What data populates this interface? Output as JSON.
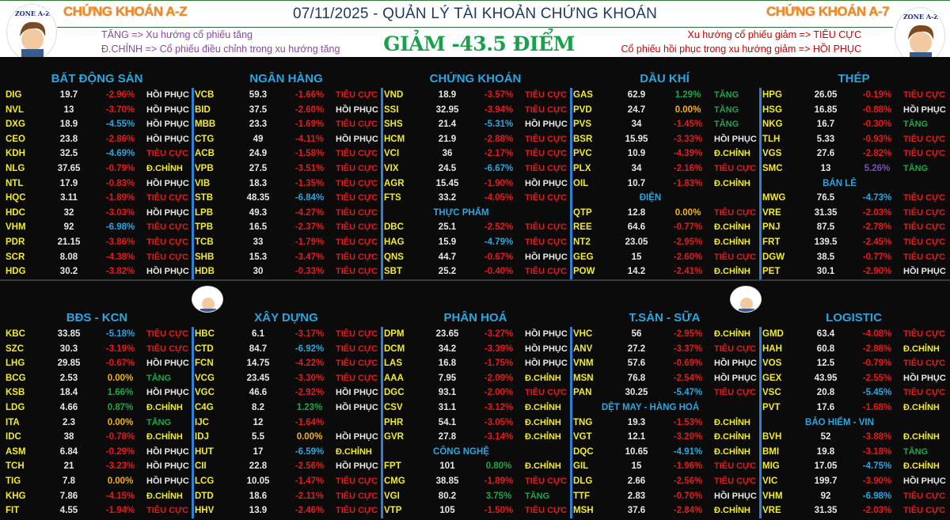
{
  "header": {
    "brand_left": "CHỨNG KHOÁN A-Z",
    "brand_right": "CHỨNG KHOÁN A-7",
    "title": "07/11/2025 - QUẢN LÝ TÀI KHOẢN CHỨNG KHOÁN",
    "headline": "GIẢM -43.5 ĐIỂM",
    "legend_left": [
      "TĂNG => Xu hướng cổ phiếu tăng",
      "Đ.CHỈNH => Cổ phiếu điều chỉnh trong xu hướng tăng"
    ],
    "legend_right": [
      "Xu hướng cổ phiếu giảm => TIÊU CỰC",
      "Cổ phiếu hồi phục trong xu hướng giảm => HỒI PHỤC"
    ],
    "logo_text": "ZONE A-Z"
  },
  "colors": {
    "down": "#e31b1b",
    "floor": "#2aa6e0",
    "up": "#1fa64a",
    "reference": "#f2b21b",
    "ceiling": "#7a4fb8",
    "headline": "#18a04a",
    "sector": "#2aa6e0",
    "ticker": "#f2ec2a"
  },
  "pct_color_codes": {
    "r": "down",
    "b": "floor",
    "g": "up",
    "y": "reference",
    "p": "ceiling"
  },
  "blocks": [
    [
      {
        "title": "BẤT ĐỘNG SẢN",
        "rows": [
          [
            "DIG",
            "19.7",
            "-2.96%",
            "r",
            "HỒI PHỤC"
          ],
          [
            "NVL",
            "13",
            "-3.70%",
            "r",
            "HỒI PHỤC"
          ],
          [
            "DXG",
            "18.9",
            "-4.55%",
            "b",
            "HỒI PHỤC"
          ],
          [
            "CEO",
            "23.8",
            "-2.86%",
            "r",
            "HỒI PHỤC"
          ],
          [
            "KDH",
            "32.5",
            "-4.69%",
            "b",
            "TIÊU CỰC"
          ],
          [
            "NLG",
            "37.65",
            "-0.79%",
            "r",
            "Đ.CHỈNH"
          ],
          [
            "NTL",
            "17.9",
            "-0.83%",
            "r",
            "HỒI PHỤC"
          ],
          [
            "HQC",
            "3.11",
            "-1.89%",
            "r",
            "TIÊU CỰC"
          ],
          [
            "HDC",
            "32",
            "-3.03%",
            "r",
            "HỒI PHỤC"
          ],
          [
            "VHM",
            "92",
            "-6.98%",
            "b",
            "TIÊU CỰC"
          ],
          [
            "PDR",
            "21.15",
            "-3.86%",
            "r",
            "TIÊU CỰC"
          ],
          [
            "SCR",
            "8.08",
            "-4.38%",
            "r",
            "TIÊU CỰC"
          ],
          [
            "HDG",
            "30.2",
            "-3.82%",
            "r",
            "HỒI PHỤC"
          ]
        ]
      },
      {
        "title": "NGÂN HÀNG",
        "rows": [
          [
            "VCB",
            "59.3",
            "-1.66%",
            "r",
            "TIÊU CỰC"
          ],
          [
            "BID",
            "37.5",
            "-2.60%",
            "r",
            "HỒI PHỤC"
          ],
          [
            "MBB",
            "23.3",
            "-1.69%",
            "r",
            "TIÊU CỰC"
          ],
          [
            "CTG",
            "49",
            "-4.11%",
            "r",
            "HỒI PHỤC"
          ],
          [
            "ACB",
            "24.9",
            "-1.58%",
            "r",
            "TIÊU CỰC"
          ],
          [
            "VPB",
            "27.5",
            "-3.51%",
            "r",
            "TIÊU CỰC"
          ],
          [
            "VIB",
            "18.3",
            "-1.35%",
            "r",
            "TIÊU CỰC"
          ],
          [
            "STB",
            "48.35",
            "-6.84%",
            "b",
            "TIÊU CỰC"
          ],
          [
            "LPB",
            "49.3",
            "-4.27%",
            "r",
            "TIÊU CỰC"
          ],
          [
            "TPB",
            "16.5",
            "-2.37%",
            "r",
            "TIÊU CỰC"
          ],
          [
            "TCB",
            "33",
            "-1.79%",
            "r",
            "TIÊU CỰC"
          ],
          [
            "SHB",
            "15.3",
            "-3.47%",
            "r",
            "TIÊU CỰC"
          ],
          [
            "HDB",
            "30",
            "-0.33%",
            "r",
            "TIÊU CỰC"
          ]
        ]
      },
      {
        "title": "CHỨNG KHOÁN",
        "rows": [
          [
            "VND",
            "18.9",
            "-3.57%",
            "r",
            "TIÊU CỰC"
          ],
          [
            "SSI",
            "32.95",
            "-3.94%",
            "r",
            "TIÊU CỰC"
          ],
          [
            "SHS",
            "21.4",
            "-5.31%",
            "b",
            "HỒI PHỤC"
          ],
          [
            "HCM",
            "21.9",
            "-2.88%",
            "r",
            "TIÊU CỰC"
          ],
          [
            "VCI",
            "36",
            "-2.17%",
            "r",
            "TIÊU CỰC"
          ],
          [
            "VIX",
            "24.5",
            "-6.67%",
            "b",
            "TIÊU CỰC"
          ],
          [
            "AGR",
            "15.45",
            "-1.90%",
            "r",
            "HỒI PHỤC"
          ],
          [
            "FTS",
            "33.2",
            "-4.05%",
            "r",
            "TIÊU CỰC"
          ],
          [
            "THỰC PHẨM"
          ],
          [
            "DBC",
            "25.1",
            "-2.52%",
            "r",
            "TIÊU CỰC"
          ],
          [
            "HAG",
            "15.9",
            "-4.79%",
            "b",
            "TIÊU CỰC"
          ],
          [
            "QNS",
            "44.7",
            "-0.67%",
            "r",
            "HỒI PHỤC"
          ],
          [
            "SBT",
            "25.2",
            "-0.40%",
            "r",
            "TIÊU CỰC"
          ]
        ]
      },
      {
        "title": "DẦU KHÍ",
        "rows": [
          [
            "GAS",
            "62.9",
            "1.29%",
            "g",
            "TĂNG"
          ],
          [
            "PVD",
            "24.7",
            "0.00%",
            "y",
            "TĂNG"
          ],
          [
            "PVS",
            "34",
            "-1.45%",
            "r",
            "TĂNG"
          ],
          [
            "BSR",
            "15.95",
            "-3.33%",
            "r",
            "HỒI PHỤC"
          ],
          [
            "PVC",
            "10.9",
            "-4.39%",
            "r",
            "Đ.CHỈNH"
          ],
          [
            "PLX",
            "34",
            "-2.16%",
            "r",
            "TIÊU CỰC"
          ],
          [
            "OIL",
            "10.7",
            "-1.83%",
            "r",
            "Đ.CHỈNH"
          ],
          [
            "ĐIỆN"
          ],
          [
            "QTP",
            "12.8",
            "0.00%",
            "y",
            "TIÊU CỰC"
          ],
          [
            "REE",
            "64.6",
            "-0.77%",
            "r",
            "Đ.CHỈNH"
          ],
          [
            "NT2",
            "23.05",
            "-2.95%",
            "r",
            "Đ.CHỈNH"
          ],
          [
            "GEG",
            "15",
            "-2.60%",
            "r",
            "TIÊU CỰC"
          ],
          [
            "POW",
            "14.2",
            "-2.41%",
            "r",
            "Đ.CHỈNH"
          ]
        ]
      },
      {
        "title": "THÉP",
        "rows": [
          [
            "HPG",
            "26.05",
            "-0.19%",
            "r",
            "TIÊU CỰC"
          ],
          [
            "HSG",
            "16.85",
            "-0.88%",
            "r",
            "HỒI PHỤC"
          ],
          [
            "NKG",
            "16.7",
            "-0.30%",
            "r",
            "TĂNG"
          ],
          [
            "TLH",
            "5.33",
            "-0.93%",
            "r",
            "TIÊU CỰC"
          ],
          [
            "VGS",
            "27.6",
            "-2.82%",
            "r",
            "TIÊU CỰC"
          ],
          [
            "SMC",
            "13",
            "5.26%",
            "p",
            "TĂNG"
          ],
          [
            "BÁN LẺ"
          ],
          [
            "MWG",
            "76.5",
            "-4.73%",
            "b",
            "TIÊU CỰC"
          ],
          [
            "VRE",
            "31.35",
            "-2.03%",
            "r",
            "TIÊU CỰC"
          ],
          [
            "PNJ",
            "87.5",
            "-2.78%",
            "r",
            "TIÊU CỰC"
          ],
          [
            "FRT",
            "139.5",
            "-2.45%",
            "r",
            "TIÊU CỰC"
          ],
          [
            "DGW",
            "38.5",
            "-0.77%",
            "r",
            "TIÊU CỰC"
          ],
          [
            "PET",
            "30.1",
            "-2.90%",
            "r",
            "HỒI PHỤC"
          ]
        ]
      }
    ],
    [
      {
        "title": "BĐS - KCN",
        "rows": [
          [
            "KBC",
            "33.85",
            "-5.18%",
            "b",
            "TIÊU CỰC"
          ],
          [
            "SZC",
            "30.3",
            "-3.19%",
            "r",
            "TIÊU CỰC"
          ],
          [
            "LHG",
            "29.85",
            "-0.67%",
            "r",
            "HỒI PHỤC"
          ],
          [
            "BCG",
            "2.53",
            "0.00%",
            "y",
            "TĂNG"
          ],
          [
            "KSB",
            "18.4",
            "1.66%",
            "g",
            "HỒI PHỤC"
          ],
          [
            "LDG",
            "4.66",
            "0.87%",
            "g",
            "Đ.CHỈNH"
          ],
          [
            "ITA",
            "2.3",
            "0.00%",
            "y",
            "TĂNG"
          ],
          [
            "IDC",
            "38",
            "-0.78%",
            "r",
            "Đ.CHỈNH"
          ],
          [
            "ASM",
            "6.84",
            "-0.29%",
            "r",
            "HỒI PHỤC"
          ],
          [
            "TCH",
            "21",
            "-3.23%",
            "r",
            "HỒI PHỤC"
          ],
          [
            "TIG",
            "7.8",
            "0.00%",
            "y",
            "HỒI PHỤC"
          ],
          [
            "KHG",
            "7.86",
            "-4.15%",
            "r",
            "Đ.CHỈNH"
          ],
          [
            "FIT",
            "4.55",
            "-1.94%",
            "r",
            "TIÊU CỰC"
          ]
        ]
      },
      {
        "title": "XÂY DỰNG",
        "rows": [
          [
            "HBC",
            "6.1",
            "-3.17%",
            "r",
            "TIÊU CỰC"
          ],
          [
            "CTD",
            "84.7",
            "-6.92%",
            "b",
            "TIÊU CỰC"
          ],
          [
            "FCN",
            "14.75",
            "-4.22%",
            "r",
            "TIÊU CỰC"
          ],
          [
            "VCG",
            "23.45",
            "-3.30%",
            "r",
            "TIÊU CỰC"
          ],
          [
            "VGC",
            "46.6",
            "-2.92%",
            "r",
            "HỒI PHỤC"
          ],
          [
            "C4G",
            "8.2",
            "1.23%",
            "g",
            "HỒI PHỤC"
          ],
          [
            "IJC",
            "12",
            "-1.64%",
            "r",
            ""
          ],
          [
            "IDJ",
            "5.5",
            "0.00%",
            "y",
            "HỒI PHỤC"
          ],
          [
            "HUT",
            "17",
            "-6.59%",
            "b",
            "Đ.CHỈNH"
          ],
          [
            "CII",
            "22.8",
            "-2.56%",
            "r",
            "HỒI PHỤC"
          ],
          [
            "LCG",
            "10.05",
            "-1.47%",
            "r",
            "TIÊU CỰC"
          ],
          [
            "DTD",
            "18.6",
            "-2.11%",
            "r",
            "TIÊU CỰC"
          ],
          [
            "HHV",
            "13.9",
            "-2.46%",
            "r",
            "TIÊU CỰC"
          ]
        ]
      },
      {
        "title": "PHÂN HOÁ",
        "rows": [
          [
            "DPM",
            "23.65",
            "-3.27%",
            "r",
            "HỒI PHỤC"
          ],
          [
            "DCM",
            "34.2",
            "-3.39%",
            "r",
            "HỒI PHỤC"
          ],
          [
            "LAS",
            "16.8",
            "-1.75%",
            "r",
            "HỒI PHỤC"
          ],
          [
            "AAA",
            "7.95",
            "-2.09%",
            "r",
            "Đ.CHỈNH"
          ],
          [
            "DGC",
            "93.1",
            "-2.00%",
            "r",
            "TIÊU CỰC"
          ],
          [
            "CSV",
            "31.1",
            "-3.12%",
            "r",
            "Đ.CHỈNH"
          ],
          [
            "PHR",
            "54.1",
            "-3.05%",
            "r",
            "Đ.CHỈNH"
          ],
          [
            "GVR",
            "27.8",
            "-3.14%",
            "r",
            "Đ.CHỈNH"
          ],
          [
            "CÔNG NGHỆ"
          ],
          [
            "FPT",
            "101",
            "0.80%",
            "g",
            "Đ.CHỈNH"
          ],
          [
            "CMG",
            "38.85",
            "-1.89%",
            "r",
            "TIÊU CỰC"
          ],
          [
            "VGI",
            "80.2",
            "3.75%",
            "g",
            "TĂNG"
          ],
          [
            "VTP",
            "105",
            "-1.50%",
            "r",
            "TIÊU CỰC"
          ]
        ]
      },
      {
        "title": "T.SẢN - SỮA",
        "rows": [
          [
            "VHC",
            "56",
            "-2.95%",
            "r",
            "Đ.CHỈNH"
          ],
          [
            "ANV",
            "27.2",
            "-3.37%",
            "r",
            "TIÊU CỰC"
          ],
          [
            "VNM",
            "57.6",
            "-0.69%",
            "r",
            "HỒI PHỤC"
          ],
          [
            "MSN",
            "76.8",
            "-2.54%",
            "r",
            "HỒI PHỤC"
          ],
          [
            "PAN",
            "30.25",
            "-5.47%",
            "b",
            "TIÊU CỰC"
          ],
          [
            "DỆT MAY - HÀNG HOÁ"
          ],
          [
            "TNG",
            "19.3",
            "-1.53%",
            "r",
            "Đ.CHỈNH"
          ],
          [
            "VGT",
            "12.1",
            "-3.20%",
            "r",
            "Đ.CHỈNH"
          ],
          [
            "DQC",
            "10.65",
            "-4.91%",
            "b",
            "Đ.CHỈNH"
          ],
          [
            "GIL",
            "15",
            "-1.96%",
            "r",
            "TIÊU CỰC"
          ],
          [
            "DLG",
            "2.66",
            "-2.56%",
            "r",
            "TIÊU CỰC"
          ],
          [
            "TTF",
            "2.83",
            "-0.70%",
            "r",
            "HỒI PHỤC"
          ],
          [
            "MSH",
            "37.6",
            "-2.84%",
            "r",
            "Đ.CHỈNH"
          ]
        ]
      },
      {
        "title": "LOGISTIC",
        "rows": [
          [
            "GMD",
            "63.4",
            "-4.08%",
            "r",
            "TIÊU CỰC"
          ],
          [
            "HAH",
            "60.8",
            "-2.88%",
            "r",
            "Đ.CHỈNH"
          ],
          [
            "VOS",
            "12.5",
            "-0.79%",
            "r",
            "TIÊU CỰC"
          ],
          [
            "GEX",
            "43.95",
            "-2.55%",
            "r",
            "HỒI PHỤC"
          ],
          [
            "VSC",
            "20.8",
            "-5.45%",
            "b",
            "TIÊU CỰC"
          ],
          [
            "PVT",
            "17.6",
            "-1.68%",
            "r",
            "Đ.CHỈNH"
          ],
          [
            "BẢO HIỂM - VIN"
          ],
          [
            "BVH",
            "52",
            "-3.88%",
            "r",
            "Đ.CHỈNH"
          ],
          [
            "BMI",
            "19.8",
            "-3.18%",
            "r",
            "TĂNG"
          ],
          [
            "MIG",
            "17.05",
            "-4.75%",
            "b",
            "Đ.CHỈNH"
          ],
          [
            "VIC",
            "199.7",
            "-3.90%",
            "r",
            "HỒI PHỤC"
          ],
          [
            "VHM",
            "92",
            "-6.98%",
            "b",
            "TIÊU CỰC"
          ],
          [
            "VRE",
            "31.35",
            "-2.03%",
            "r",
            "TIÊU CỰC"
          ]
        ]
      }
    ]
  ]
}
